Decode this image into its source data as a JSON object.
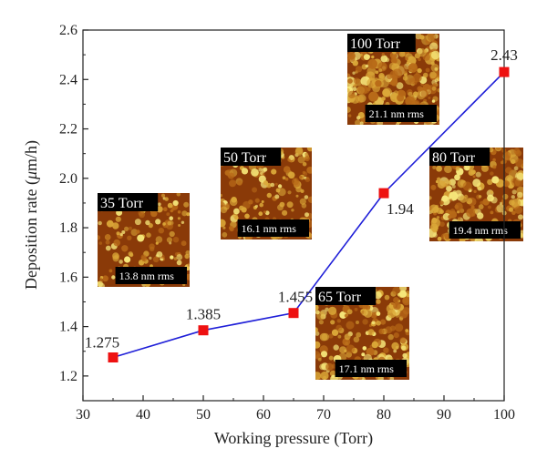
{
  "chart_data": {
    "type": "line",
    "xlabel": "Working pressure (Torr)",
    "ylabel_prefix": "Deposition rate (",
    "ylabel_unit_mu": "μ",
    "ylabel_suffix": "m/h)",
    "xlim": [
      30,
      100
    ],
    "ylim": [
      1.1,
      2.6
    ],
    "x_ticks": [
      "30",
      "40",
      "50",
      "60",
      "70",
      "80",
      "90",
      "100"
    ],
    "y_ticks": [
      "1.2",
      "1.4",
      "1.6",
      "1.8",
      "2.0",
      "2.2",
      "2.4",
      "2.6"
    ],
    "grid": false,
    "series": [
      {
        "color": "#1f1fd8",
        "marker_color": "#ee1111",
        "points": [
          {
            "x": 35,
            "y": 1.275,
            "label": "1.275"
          },
          {
            "x": 50,
            "y": 1.385,
            "label": "1.385"
          },
          {
            "x": 65,
            "y": 1.455,
            "label": "1.455"
          },
          {
            "x": 80,
            "y": 1.94,
            "label": "1.94"
          },
          {
            "x": 100,
            "y": 2.43,
            "label": "2.43"
          }
        ]
      }
    ],
    "insets": [
      {
        "title": "35 Torr",
        "rms": "13.8 nm rms"
      },
      {
        "title": "50 Torr",
        "rms": "16.1 nm rms"
      },
      {
        "title": "65 Torr",
        "rms": "17.1 nm rms"
      },
      {
        "title": "80 Torr",
        "rms": "19.4 nm rms"
      },
      {
        "title": "100 Torr",
        "rms": "21.1 nm rms"
      }
    ]
  }
}
